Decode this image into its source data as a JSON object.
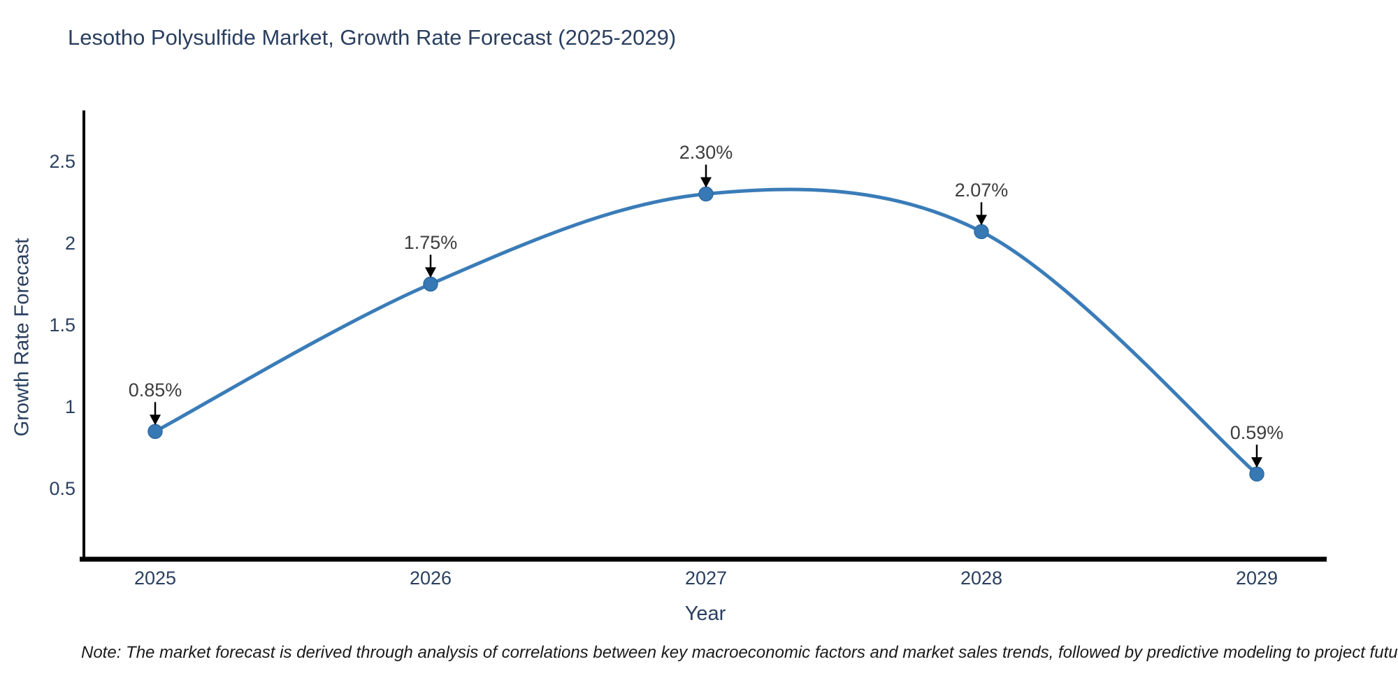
{
  "title": "Lesotho Polysulfide Market, Growth Rate Forecast (2025-2029)",
  "note": "Note: The market forecast is derived through analysis of correlations between key macroeconomic factors and market sales trends, followed by predictive modeling to project future sales",
  "chart_data": {
    "type": "line",
    "line_shape": "spline",
    "categories": [
      "2025",
      "2026",
      "2027",
      "2028",
      "2029"
    ],
    "x": [
      2025,
      2026,
      2027,
      2028,
      2029
    ],
    "values": [
      0.85,
      1.75,
      2.3,
      2.07,
      0.59
    ],
    "point_labels": [
      "0.85%",
      "1.75%",
      "2.30%",
      "2.07%",
      "0.59%"
    ],
    "title": "Lesotho Polysulfide Market, Growth Rate Forecast (2025-2029)",
    "xlabel": "Year",
    "ylabel": "Growth Rate Forecast",
    "yticks": [
      0.5,
      1,
      1.5,
      2,
      2.5
    ],
    "ylim": [
      0.07,
      2.81
    ],
    "grid": false,
    "legend": false,
    "colors": {
      "line": "#3a7cb8",
      "marker_fill": "#3679b5",
      "marker_edge": "#2f6ba3",
      "annotation_arrow": "#000000",
      "axis_line": "#000000",
      "text": "#2a3f5f",
      "annotation_text": "#3d3d3d"
    }
  }
}
